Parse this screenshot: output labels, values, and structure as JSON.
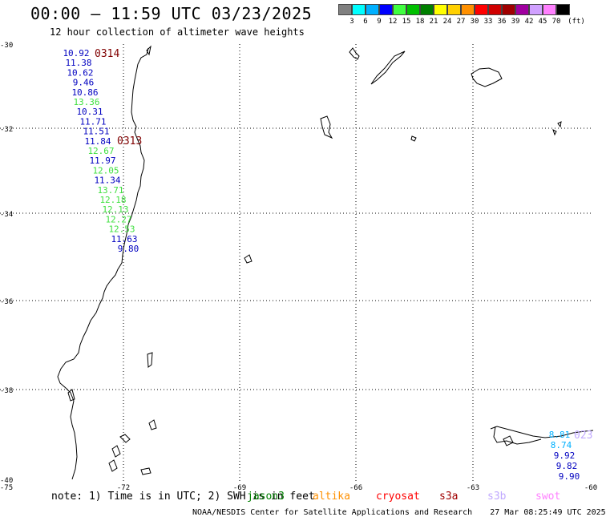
{
  "header": {
    "title": "00:00 – 11:59 UTC 03/23/2025",
    "subtitle": "12 hour collection of altimeter wave heights"
  },
  "colorbar": {
    "colors": [
      "#808080",
      "#00ffff",
      "#00b0ff",
      "#0000ff",
      "#40ff40",
      "#00c000",
      "#008000",
      "#ffff00",
      "#ffd000",
      "#ff9000",
      "#ff0000",
      "#d00000",
      "#a00000",
      "#a000a0",
      "#d0a0ff",
      "#ff80ff",
      "#000000"
    ],
    "labels": [
      "3",
      "6",
      "9",
      "12",
      "15",
      "18",
      "21",
      "24",
      "27",
      "30",
      "33",
      "36",
      "39",
      "42",
      "45",
      "70"
    ],
    "unit": "(ft)"
  },
  "axes": {
    "lat_labels": [
      "-30",
      "-32",
      "-34",
      "-36",
      "-38",
      "-40"
    ],
    "lon_labels": [
      "-75",
      "-72",
      "-69",
      "-66",
      "-63",
      "-60"
    ]
  },
  "passes": [
    {
      "label": "0314",
      "color": "#800000"
    },
    {
      "label": "0313",
      "color": "#800000"
    },
    {
      "label": "023",
      "color": "#c0a8ff"
    }
  ],
  "track1": [
    {
      "value": "10.92",
      "color": "#0000c0"
    },
    {
      "value": "11.38",
      "color": "#0000c0"
    },
    {
      "value": "10.62",
      "color": "#0000c0"
    },
    {
      "value": "9.46",
      "color": "#0000c0"
    },
    {
      "value": "10.86",
      "color": "#0000c0"
    },
    {
      "value": "13.36",
      "color": "#40e040"
    },
    {
      "value": "10.31",
      "color": "#0000c0"
    },
    {
      "value": "11.71",
      "color": "#0000c0"
    },
    {
      "value": "11.51",
      "color": "#0000c0"
    },
    {
      "value": "11.84",
      "color": "#0000c0"
    },
    {
      "value": "12.67",
      "color": "#40e040"
    },
    {
      "value": "11.97",
      "color": "#0000c0"
    },
    {
      "value": "12.05",
      "color": "#40e040"
    },
    {
      "value": "11.34",
      "color": "#0000c0"
    },
    {
      "value": "13.71",
      "color": "#40e040"
    },
    {
      "value": "12.18",
      "color": "#40e040"
    },
    {
      "value": "12.13",
      "color": "#40e040"
    },
    {
      "value": "12.27",
      "color": "#40e040"
    },
    {
      "value": "12.53",
      "color": "#40e040"
    },
    {
      "value": "11.63",
      "color": "#0000c0"
    },
    {
      "value": "9.80",
      "color": "#0000c0"
    }
  ],
  "track2": [
    {
      "value": "8.81",
      "color": "#00b0ff"
    },
    {
      "value": "8.74",
      "color": "#00b0ff"
    },
    {
      "value": "9.92",
      "color": "#0000c0"
    },
    {
      "value": "9.82",
      "color": "#0000c0"
    },
    {
      "value": "9.90",
      "color": "#0000c0"
    }
  ],
  "note": {
    "text": "note: 1) Time is in UTC; 2) SWH is in feet",
    "satellites": [
      {
        "name": "jason3",
        "color": "#008000"
      },
      {
        "name": "altika",
        "color": "#ff9000"
      },
      {
        "name": "cryosat",
        "color": "#ff0000"
      },
      {
        "name": "s3a",
        "color": "#a00000"
      },
      {
        "name": "s3b",
        "color": "#c0a8ff"
      },
      {
        "name": "swot",
        "color": "#ff80ff"
      }
    ]
  },
  "footer": {
    "credit": "NOAA/NESDIS Center for Satellite Applications and Research",
    "timestamp": "27 Mar 08:25:49 UTC 2025"
  }
}
